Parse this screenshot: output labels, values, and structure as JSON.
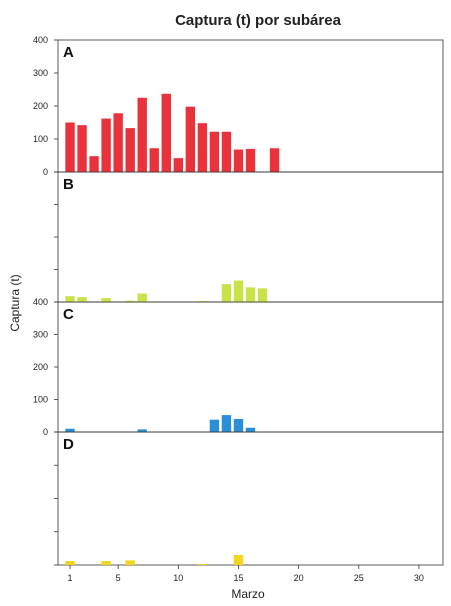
{
  "chart_data": {
    "type": "bar",
    "title": "Captura (t) por subárea",
    "xlabel": "Marzo",
    "ylabel": "Captura (t)",
    "xlim": [
      0,
      32
    ],
    "ylim": [
      0,
      400
    ],
    "x_ticks": [
      1,
      5,
      10,
      15,
      20,
      25,
      30
    ],
    "y_ticks": [
      0,
      100,
      200,
      300,
      400
    ],
    "grid": false,
    "panels": [
      {
        "label": "A",
        "color": "#e8323c",
        "y_tick_labels_shown": true,
        "x": [
          1,
          2,
          3,
          4,
          5,
          6,
          7,
          8,
          9,
          10,
          11,
          12,
          13,
          14,
          15,
          16,
          18
        ],
        "values": [
          150,
          142,
          48,
          162,
          178,
          133,
          225,
          72,
          237,
          42,
          198,
          148,
          122,
          122,
          68,
          70,
          72
        ]
      },
      {
        "label": "B",
        "color": "#c9e24a",
        "y_tick_labels_shown": false,
        "x": [
          1,
          2,
          4,
          6,
          7,
          12,
          14,
          15,
          16,
          17
        ],
        "values": [
          18,
          15,
          12,
          4,
          26,
          3,
          55,
          66,
          45,
          42
        ]
      },
      {
        "label": "C",
        "color": "#2a8fd8",
        "y_tick_labels_shown": true,
        "x": [
          1,
          7,
          13,
          14,
          15,
          16
        ],
        "values": [
          10,
          8,
          38,
          52,
          40,
          13
        ]
      },
      {
        "label": "D",
        "color": "#f2d51c",
        "y_tick_labels_shown": false,
        "x": [
          1,
          4,
          6,
          12,
          15
        ],
        "values": [
          12,
          12,
          14,
          3,
          30
        ]
      }
    ]
  }
}
